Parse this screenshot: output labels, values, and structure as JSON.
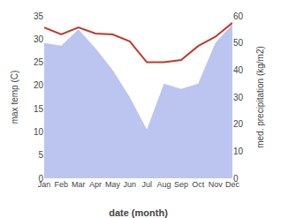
{
  "chart_data": {
    "type": "line",
    "categories": [
      "Jan",
      "Feb",
      "Mar",
      "Apr",
      "May",
      "Jun",
      "Jul",
      "Aug",
      "Sep",
      "Oct",
      "Nov",
      "Dec"
    ],
    "xlabel": "date (month)",
    "ylabel": "max temp (C)",
    "y2label": "med. precipitation (kg/m2)",
    "ylim": [
      0,
      35
    ],
    "yticks": [
      0,
      5,
      10,
      15,
      20,
      25,
      30,
      35
    ],
    "y2lim": [
      0,
      60
    ],
    "y2ticks": [
      0,
      10,
      20,
      30,
      40,
      50,
      60
    ],
    "grid": false,
    "series": [
      {
        "type": "area",
        "axis": "y2",
        "color": "#bcc5f0",
        "values": [
          50.0,
          49.0,
          55.0,
          48.0,
          40.0,
          30.0,
          18.0,
          35.0,
          33.0,
          35.0,
          50.0,
          57.0
        ]
      },
      {
        "type": "line",
        "color": "#c0392b",
        "values": [
          32.5,
          31.0,
          32.5,
          31.2,
          31.0,
          29.5,
          25.0,
          25.0,
          25.5,
          28.5,
          30.5,
          33.5
        ]
      }
    ]
  }
}
